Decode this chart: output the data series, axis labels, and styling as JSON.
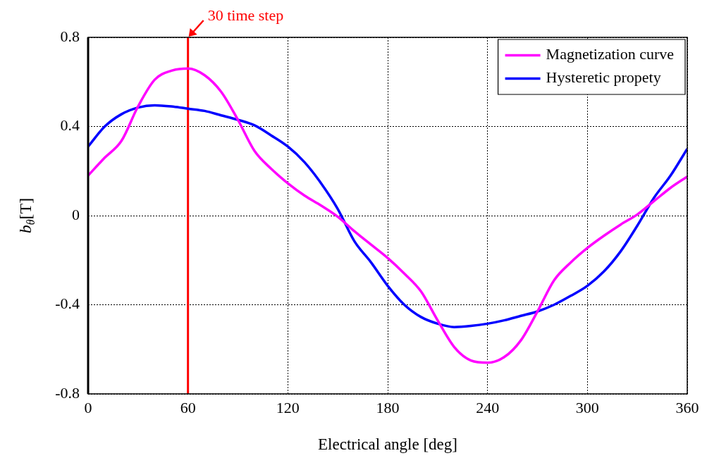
{
  "chart_data": {
    "type": "line",
    "xlabel": "Electrical angle [deg]",
    "ylabel": "b$_{θ}$[T]",
    "x": [
      0,
      10,
      20,
      30,
      40,
      50,
      60,
      70,
      80,
      90,
      100,
      110,
      120,
      130,
      140,
      150,
      160,
      170,
      180,
      190,
      200,
      210,
      220,
      230,
      240,
      250,
      260,
      270,
      280,
      290,
      300,
      310,
      320,
      330,
      340,
      350,
      360
    ],
    "series": [
      {
        "name": "Magnetization curve",
        "color": "#ff00ff",
        "values": [
          0.18,
          0.26,
          0.335,
          0.49,
          0.61,
          0.65,
          0.66,
          0.63,
          0.555,
          0.43,
          0.29,
          0.21,
          0.145,
          0.09,
          0.045,
          -0.005,
          -0.07,
          -0.13,
          -0.19,
          -0.26,
          -0.34,
          -0.47,
          -0.59,
          -0.65,
          -0.66,
          -0.635,
          -0.56,
          -0.43,
          -0.29,
          -0.21,
          -0.145,
          -0.09,
          -0.04,
          0.005,
          0.065,
          0.125,
          0.175
        ]
      },
      {
        "name": "Hysteretic propety",
        "color": "#0000ff",
        "values": [
          0.31,
          0.4,
          0.455,
          0.485,
          0.495,
          0.49,
          0.48,
          0.47,
          0.45,
          0.43,
          0.405,
          0.36,
          0.31,
          0.24,
          0.145,
          0.03,
          -0.115,
          -0.21,
          -0.315,
          -0.4,
          -0.455,
          -0.485,
          -0.5,
          -0.495,
          -0.485,
          -0.47,
          -0.45,
          -0.43,
          -0.4,
          -0.36,
          -0.315,
          -0.25,
          -0.16,
          -0.045,
          0.08,
          0.18,
          0.3
        ]
      }
    ],
    "xlim": [
      0,
      360
    ],
    "xticks": [
      0,
      60,
      120,
      180,
      240,
      300,
      360
    ],
    "ylim": [
      -0.8,
      0.8
    ],
    "yticks": [
      -0.8,
      -0.4,
      0,
      0.4,
      0.8
    ],
    "ref_lines": [
      {
        "axis": "x",
        "value": 60,
        "label": "30 time step",
        "color": "#ff0000"
      }
    ],
    "grid": true,
    "legend": "top right",
    "marker": "none",
    "line_style": "solid"
  }
}
